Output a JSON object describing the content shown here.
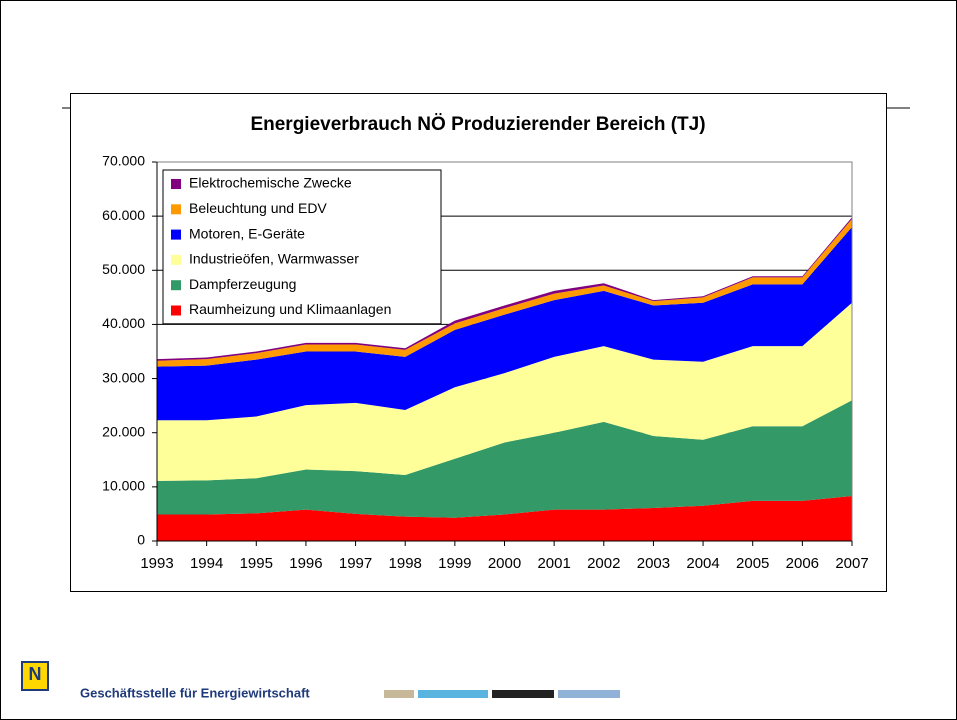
{
  "chart_data": {
    "type": "stacked-area",
    "title": "Energieverbrauch NÖ Produzierender Bereich (TJ)",
    "categories": [
      "1993",
      "1994",
      "1995",
      "1996",
      "1997",
      "1998",
      "1999",
      "2000",
      "2001",
      "2002",
      "2003",
      "2004",
      "2005",
      "2006",
      "2007"
    ],
    "series": [
      {
        "name": "Raumheizung und Klimaanlagen",
        "color": "#ff0000",
        "values": [
          4900,
          4900,
          5100,
          5800,
          5000,
          4500,
          4300,
          4900,
          5800,
          5800,
          6100,
          6500,
          7400,
          7400,
          8300
        ]
      },
      {
        "name": "Dampferzeugung",
        "color": "#339966",
        "values": [
          6200,
          6300,
          6500,
          7400,
          7900,
          7700,
          10900,
          13300,
          14200,
          16200,
          13300,
          12200,
          13800,
          13800,
          17700
        ]
      },
      {
        "name": "Industrieöfen, Warmwasser",
        "color": "#ffff99",
        "values": [
          11200,
          11100,
          11400,
          11900,
          12600,
          12000,
          13200,
          12800,
          14000,
          14000,
          14100,
          14400,
          14800,
          14800,
          18000
        ]
      },
      {
        "name": "Motoren, E-Geräte",
        "color": "#0000ff",
        "values": [
          9900,
          10100,
          10500,
          9900,
          9500,
          9800,
          10600,
          10800,
          10500,
          10200,
          10000,
          10900,
          11400,
          11400,
          14000
        ]
      },
      {
        "name": "Beleuchtung und EDV",
        "color": "#ff9900",
        "values": [
          1100,
          1200,
          1200,
          1300,
          1300,
          1300,
          1200,
          1200,
          1200,
          1000,
          800,
          1000,
          1300,
          1300,
          1500
        ]
      },
      {
        "name": "Elektrochemische Zwecke",
        "color": "#800080",
        "values": [
          300,
          300,
          300,
          300,
          300,
          300,
          500,
          500,
          500,
          400,
          200,
          200,
          200,
          200,
          300
        ]
      }
    ],
    "ylim": [
      0,
      70000
    ],
    "yticks": [
      0,
      {
        "value": 10000,
        "label": "10.000"
      },
      {
        "value": 20000,
        "label": "20.000"
      },
      {
        "value": 30000,
        "label": "30.000"
      },
      {
        "value": 40000,
        "label": "40.000"
      },
      {
        "value": 50000,
        "label": "50.000"
      },
      {
        "value": 60000,
        "label": "60.000"
      },
      {
        "value": 70000,
        "label": "70.000"
      }
    ],
    "grid": true,
    "legend": "top-left"
  },
  "footer": {
    "text": "Geschäftsstelle für Energiewirtschaft",
    "logo": "N"
  }
}
